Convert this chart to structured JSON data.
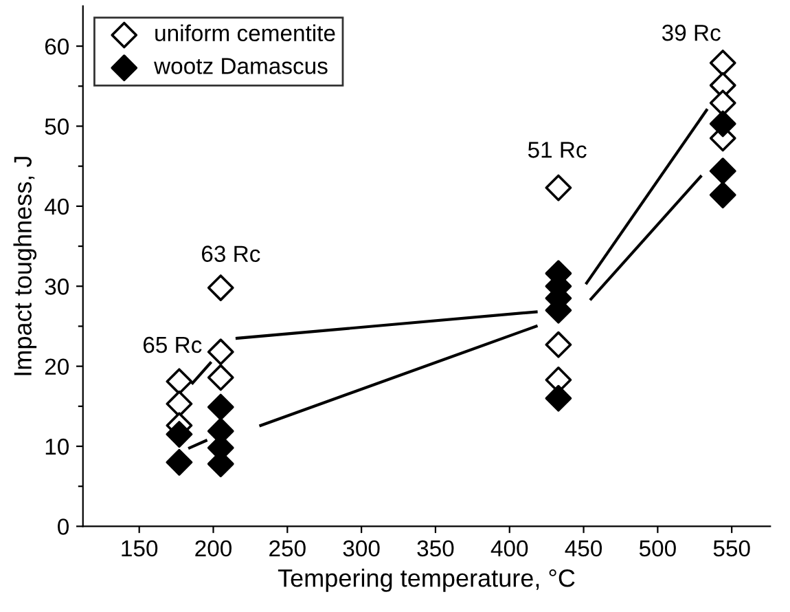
{
  "chart_data": {
    "type": "scatter",
    "xlabel": "Tempering temperature, °C",
    "ylabel": "Impact toughness, J",
    "xlim": [
      112,
      576
    ],
    "xticks": [
      150,
      200,
      250,
      300,
      350,
      400,
      450,
      500,
      550
    ],
    "ylim": [
      0,
      65
    ],
    "yticks": [
      0,
      {
        "value": 5,
        "label": null
      },
      10,
      {
        "value": 15,
        "label": null
      },
      20,
      {
        "value": 25,
        "label": null
      },
      30,
      {
        "value": 35,
        "label": null
      },
      40,
      {
        "value": 45,
        "label": null
      },
      50,
      {
        "value": 55,
        "label": null
      },
      60
    ],
    "grid": false,
    "legend": "top left",
    "series": [
      {
        "name": "uniform cementite",
        "color": "#ffffff",
        "marker": "diamond",
        "x": [
          177,
          177,
          177,
          205,
          205,
          205,
          433,
          433,
          433,
          544,
          544,
          544,
          544
        ],
        "values": [
          18.1,
          15.3,
          12.6,
          29.8,
          21.8,
          18.6,
          42.3,
          22.7,
          18.3,
          57.9,
          55.1,
          52.9,
          48.5
        ]
      },
      {
        "name": "wootz Damascus",
        "color": "#000000",
        "marker": "diamond",
        "x": [
          177,
          177,
          205,
          205,
          205,
          205,
          433,
          433,
          433,
          433,
          433,
          544,
          544,
          544
        ],
        "values": [
          11.5,
          8.0,
          14.9,
          11.9,
          9.8,
          7.8,
          31.6,
          30.0,
          28.5,
          27.0,
          16.0,
          50.3,
          44.4,
          41.4
        ]
      },
      {
        "type": "line",
        "color": "#000000",
        "x": [
          184,
          195
        ],
        "values": [
          9.8,
          10.7
        ]
      },
      {
        "type": "line",
        "color": "#000000",
        "x": [
          186,
          198
        ],
        "values": [
          17.9,
          20.4
        ]
      },
      {
        "type": "line",
        "color": "#000000",
        "x": [
          216,
          418
        ],
        "values": [
          23.5,
          26.8
        ]
      },
      {
        "type": "line",
        "color": "#000000",
        "x": [
          232,
          418
        ],
        "values": [
          12.6,
          25.0
        ]
      },
      {
        "type": "line",
        "color": "#000000",
        "x": [
          452,
          533
        ],
        "values": [
          30.4,
          52.0
        ]
      },
      {
        "type": "line",
        "color": "#000000",
        "x": [
          455,
          529
        ],
        "values": [
          28.4,
          43.7
        ]
      }
    ],
    "annotations": [
      "65 Rc",
      "63 Rc",
      "51 Rc",
      "39 Rc"
    ]
  }
}
